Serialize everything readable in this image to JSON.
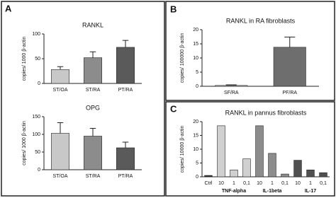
{
  "panel_labels": [
    "A",
    "B",
    "C"
  ],
  "chart_data": [
    {
      "type": "bar",
      "title": "RANKL",
      "y_label": "copies/ 1000 β-actin",
      "categories": [
        "ST/OA",
        "ST/RA",
        "PT/RA"
      ],
      "values": [
        28,
        52,
        73
      ],
      "errors": [
        6,
        12,
        14
      ],
      "colors": [
        "#c8c8c8",
        "#8c8c8c",
        "#5a5a5a"
      ],
      "ylim": [
        0,
        100
      ],
      "yticks": [
        0,
        50,
        100
      ]
    },
    {
      "type": "bar",
      "title": "OPG",
      "y_label": "copies/ 1000 β-actin",
      "categories": [
        "ST/OA",
        "ST/RA",
        "PT/RA"
      ],
      "values": [
        103,
        95,
        62
      ],
      "errors": [
        30,
        22,
        16
      ],
      "colors": [
        "#c8c8c8",
        "#8c8c8c",
        "#5a5a5a"
      ],
      "ylim": [
        0,
        150
      ],
      "yticks": [
        0,
        50,
        100,
        150
      ]
    },
    {
      "type": "bar",
      "title": "RANKL in RA fibroblasts",
      "y_label": "copies/ 100000 β-actin",
      "categories": [
        "SF/RA",
        "PF/RA"
      ],
      "values": [
        0.3,
        13.8
      ],
      "errors": [
        0.2,
        3.6
      ],
      "colors": [
        "#c8c8c8",
        "#6e6e6e"
      ],
      "ylim": [
        0,
        20
      ],
      "yticks": [
        0,
        5,
        10,
        15,
        20
      ]
    },
    {
      "type": "bar",
      "title": "RANKL in pannus fibroblasts",
      "y_label": "copies/ 10000 β-actin",
      "categories": [
        "Ctrl",
        "10",
        "1",
        "0,1",
        "10",
        "1",
        "0,1",
        "10",
        "1",
        "0,1"
      ],
      "group_labels": [
        "TNF-alpha",
        "IL-1beta",
        "IL-17"
      ],
      "values": [
        0.5,
        18.5,
        2.5,
        6.5,
        18.5,
        8.5,
        1,
        6,
        2.5,
        1.5
      ],
      "colors": [
        "#333333",
        "#d0d0d0",
        "#d0d0d0",
        "#d0d0d0",
        "#8c8c8c",
        "#8c8c8c",
        "#8c8c8c",
        "#505050",
        "#505050",
        "#505050"
      ],
      "ylim": [
        0,
        20
      ],
      "yticks": [
        0,
        5,
        10,
        15,
        20
      ]
    }
  ]
}
